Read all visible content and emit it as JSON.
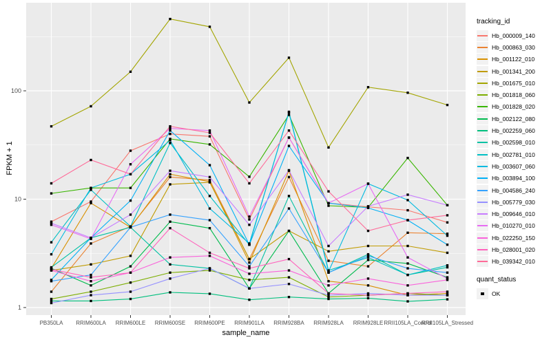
{
  "chart_data": {
    "type": "line",
    "title": "",
    "xlabel": "sample_name",
    "ylabel": "FPKM + 1",
    "y_scale": "log10",
    "y_ticks": [
      1,
      10,
      100
    ],
    "y_minor_ticks": [
      3.162,
      31.62,
      316.2
    ],
    "ylim": [
      0.83,
      600
    ],
    "grid": true,
    "panel_bg": "#EBEBEB",
    "grid_color": "#FFFFFF",
    "tick_label_color": "#4D4D4D",
    "point_marker": "black-square",
    "point_color": "#000000",
    "legend_position": "right",
    "categories": [
      "PB350LA",
      "RRIM600LA",
      "RRIM600LE",
      "RRIM600SE",
      "RRIM600PE",
      "RRIM901LA",
      "RRIM928BA",
      "RRIM928LA",
      "RRIM928LE",
      "RRII105LA_Control",
      "RRII105LA_Stressed"
    ],
    "legend": {
      "title": "tracking_id"
    },
    "legend2": {
      "title": "quant_status",
      "items": [
        {
          "label": "OK",
          "marker": "square",
          "color": "#000000"
        }
      ]
    },
    "series": [
      {
        "name": "Hb_000009_140",
        "color": "#F8766D",
        "values": [
          6.2,
          9.5,
          28,
          40,
          38,
          6.5,
          37,
          9.2,
          8.5,
          7.9,
          6.1
        ]
      },
      {
        "name": "Hb_000863_030",
        "color": "#EA8331",
        "values": [
          1.4,
          3.9,
          5.6,
          16,
          15,
          2.8,
          16,
          2.7,
          2.4,
          4.9,
          4.8
        ]
      },
      {
        "name": "Hb_001122_010",
        "color": "#D89000",
        "values": [
          2.3,
          9.2,
          5.5,
          17,
          14.5,
          2.6,
          18.3,
          1.75,
          1.6,
          1.3,
          1.35
        ]
      },
      {
        "name": "Hb_001341_200",
        "color": "#C09B00",
        "values": [
          2.2,
          2.5,
          3.0,
          13.7,
          14.3,
          2.8,
          5.1,
          3.3,
          3.7,
          3.7,
          3.2
        ]
      },
      {
        "name": "Hb_001675_010",
        "color": "#A3A500",
        "values": [
          47,
          72,
          150,
          460,
          390,
          78,
          202,
          30,
          108,
          96,
          74
        ]
      },
      {
        "name": "Hb_001818_060",
        "color": "#7CAE00",
        "values": [
          1.2,
          1.4,
          1.7,
          2.1,
          2.2,
          1.8,
          1.9,
          1.25,
          1.3,
          1.35,
          1.3
        ]
      },
      {
        "name": "Hb_001828_020",
        "color": "#39B600",
        "values": [
          11.3,
          12.7,
          12.7,
          36,
          32,
          16.1,
          60,
          8.7,
          8.4,
          24,
          8.8
        ]
      },
      {
        "name": "Hb_002122_080",
        "color": "#00BB4E",
        "values": [
          2.3,
          1.6,
          2.4,
          6.2,
          5.4,
          1.5,
          5.1,
          1.35,
          2.75,
          2.55,
          1.9
        ]
      },
      {
        "name": "Hb_002259_060",
        "color": "#00BF7D",
        "values": [
          1.15,
          1.15,
          1.2,
          1.38,
          1.34,
          1.18,
          1.25,
          1.2,
          1.22,
          1.14,
          1.19
        ]
      },
      {
        "name": "Hb_002598_010",
        "color": "#00C1A3",
        "values": [
          2.35,
          4.4,
          5.5,
          2.5,
          2.3,
          1.5,
          10.7,
          2.1,
          3.1,
          2.0,
          2.35
        ]
      },
      {
        "name": "Hb_002781_010",
        "color": "#00BFC4",
        "values": [
          4.0,
          12.2,
          5.6,
          33,
          10.7,
          3.8,
          64,
          2.2,
          2.9,
          2.0,
          2.45
        ]
      },
      {
        "name": "Hb_003607_060",
        "color": "#00BAE0",
        "values": [
          3.1,
          12.7,
          17,
          35,
          8.2,
          3.9,
          63,
          2.15,
          13.9,
          9.8,
          4.6
        ]
      },
      {
        "name": "Hb_003894_100",
        "color": "#00B0F6",
        "values": [
          1.8,
          4.4,
          9.7,
          43,
          20.6,
          3.8,
          31,
          9.2,
          8.3,
          6.4,
          3.8
        ]
      },
      {
        "name": "Hb_004586_240",
        "color": "#35A2FF",
        "values": [
          1.75,
          2.0,
          5.5,
          7.2,
          6.4,
          2.4,
          8.2,
          2.1,
          3.0,
          2.3,
          2.1
        ]
      },
      {
        "name": "Hb_005779_030",
        "color": "#9590FF",
        "values": [
          1.1,
          1.3,
          1.4,
          1.85,
          2.3,
          1.5,
          1.65,
          1.3,
          1.35,
          1.3,
          1.3
        ]
      },
      {
        "name": "Hb_009646_010",
        "color": "#C77CFF",
        "values": [
          6.0,
          4.4,
          7.2,
          18.3,
          16,
          5.8,
          18.5,
          3.7,
          8.6,
          11,
          8.8
        ]
      },
      {
        "name": "Hb_010270_010",
        "color": "#E76BF3",
        "values": [
          5.8,
          4.3,
          21,
          45,
          43,
          6.9,
          37,
          9.2,
          13.9,
          2.9,
          1.85
        ]
      },
      {
        "name": "Hb_022250_150",
        "color": "#FA62DB",
        "values": [
          2.2,
          1.75,
          2.1,
          2.9,
          3.0,
          2.05,
          2.2,
          1.6,
          1.85,
          1.6,
          1.8
        ]
      },
      {
        "name": "Hb_028001_020",
        "color": "#FF62BC",
        "values": [
          2.25,
          1.9,
          2.1,
          5.4,
          3.2,
          2.3,
          2.8,
          1.35,
          1.3,
          1.35,
          1.4
        ]
      },
      {
        "name": "Hb_039342_010",
        "color": "#FF6A98",
        "values": [
          14,
          23,
          17,
          47,
          41,
          14,
          43,
          11.8,
          5.1,
          6.4,
          7.1
        ]
      }
    ]
  }
}
